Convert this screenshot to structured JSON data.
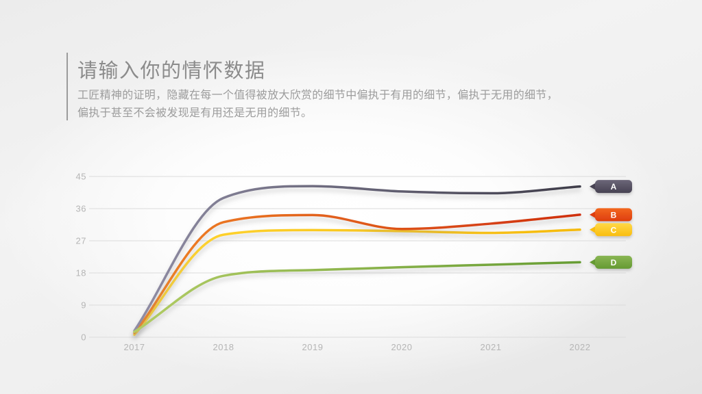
{
  "slide": {
    "title": "请输入你的情怀数据",
    "subtitle_line1": "工匠精神的证明，隐藏在每一个值得被放大欣赏的细节中偏执于有用的细节，偏执于无用的细节，",
    "subtitle_line2": "偏执于甚至不会被发现是有用还是无用的细节。"
  },
  "chart_data": {
    "type": "line",
    "title": "",
    "xlabel": "",
    "ylabel": "",
    "x": [
      2017,
      2018,
      2019,
      2020,
      2021,
      2022
    ],
    "x_labels": [
      "2017",
      "2018",
      "2019",
      "2020",
      "2021",
      "2022"
    ],
    "yticks": [
      0,
      9,
      18,
      27,
      36,
      45
    ],
    "ylim": [
      0,
      45
    ],
    "grid": true,
    "grid_color": "#dbdbdb",
    "tick_label_color": "#b5b5b5",
    "legend_position": "right-badges",
    "series": [
      {
        "name": "A",
        "values": [
          1.8,
          39.0,
          42.3,
          40.8,
          40.3,
          42.2
        ],
        "line_color_start": "#908da5",
        "line_color_end": "#3e3c49",
        "badge_color_top": "#6b6678",
        "badge_color_bottom": "#474252",
        "badge_text_color": "#ffffff"
      },
      {
        "name": "B",
        "values": [
          1.2,
          32.2,
          34.2,
          30.3,
          31.8,
          34.3
        ],
        "line_color_start": "#f08526",
        "line_color_end": "#cf2f0e",
        "badge_color_top": "#f2671f",
        "badge_color_bottom": "#de3d0e",
        "badge_text_color": "#ffffff"
      },
      {
        "name": "C",
        "values": [
          0.7,
          28.7,
          30.0,
          29.7,
          29.2,
          30.1
        ],
        "line_color_start": "#ffd634",
        "line_color_end": "#f5ba0c",
        "badge_color_top": "#ffd847",
        "badge_color_bottom": "#f9bd0f",
        "badge_text_color": "#ffffff"
      },
      {
        "name": "D",
        "values": [
          1.5,
          17.2,
          18.8,
          19.6,
          20.3,
          21.0
        ],
        "line_color_start": "#b2cc65",
        "line_color_end": "#669c33",
        "badge_color_top": "#8ab654",
        "badge_color_bottom": "#659a33",
        "badge_text_color": "#ffffff"
      }
    ]
  }
}
